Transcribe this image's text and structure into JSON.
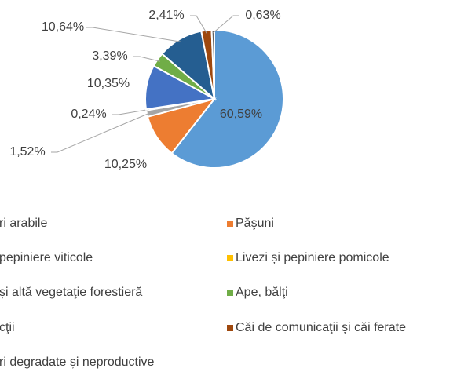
{
  "chart_data": {
    "type": "pie",
    "categories": [
      "ri arabile",
      "Păşuni",
      "pepiniere viticole",
      "Livezi și pepiniere pomicole",
      "și altă vegetaţie forestieră",
      "Ape, bălţi",
      "cţii",
      "Căi de comunicaţii și căi ferate",
      "ri degradate și neproductive"
    ],
    "values": [
      60.59,
      10.25,
      1.52,
      0.24,
      10.35,
      3.39,
      10.64,
      2.41,
      0.63
    ],
    "value_labels": [
      "60,59%",
      "10,25%",
      "1,52%",
      "0,24%",
      "10,35%",
      "3,39%",
      "10,64%",
      "2,41%",
      "0,63%"
    ],
    "colors": [
      "#5b9bd5",
      "#ed7d31",
      "#a5a5a5",
      "#ffc000",
      "#4472c4",
      "#70ad47",
      "#255e91",
      "#9e480e",
      "#636363"
    ],
    "legend": "bottom"
  }
}
